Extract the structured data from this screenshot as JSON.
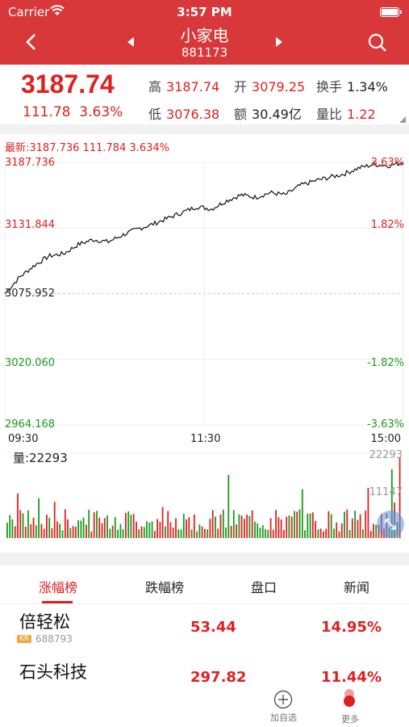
{
  "status": {
    "carrier": "Carrier",
    "time": "3:57 PM"
  },
  "nav": {
    "title": "小家电",
    "code": "881173"
  },
  "quote": {
    "price": "3187.74",
    "change": "111.78",
    "change_pct": "3.63%",
    "stats": [
      {
        "label": "高",
        "value": "3187.74",
        "color": "red"
      },
      {
        "label": "开",
        "value": "3079.25",
        "color": "red"
      },
      {
        "label": "换手",
        "value": "1.34%",
        "color": "black"
      },
      {
        "label": "低",
        "value": "3076.38",
        "color": "red"
      },
      {
        "label": "额",
        "value": "30.49亿",
        "color": "black"
      },
      {
        "label": "量比",
        "value": "1.22",
        "color": "red"
      }
    ]
  },
  "chart": {
    "latest": "最新:3187.736 111.784 3.634%",
    "y_labels_left": [
      "3187.736",
      "3131.844",
      "3075.952",
      "3020.060",
      "2964.168"
    ],
    "y_labels_right": [
      "3.63%",
      "1.82%",
      "",
      "-1.82%",
      "-3.63%"
    ],
    "x_labels": [
      "09:30",
      "11:30",
      "15:00"
    ],
    "volume_label": "量:22293",
    "volume_max": "22293",
    "volume_mid": "11147"
  },
  "chart_data": {
    "type": "line",
    "x_range": [
      "09:30",
      "15:00"
    ],
    "ylim": [
      2964.168,
      3187.736
    ],
    "series": [
      {
        "values": [
          3075.9,
          3090,
          3100,
          3108,
          3110,
          3118,
          3122,
          3120,
          3126,
          3131,
          3135,
          3140,
          3145,
          3150,
          3148,
          3155,
          3160,
          3158,
          3162,
          3160,
          3168,
          3172,
          3175,
          3178,
          3183,
          3186,
          3185,
          3187.7
        ]
      }
    ],
    "volume_max": 22293
  },
  "tabs": [
    "涨幅榜",
    "跌幅榜",
    "盘口",
    "新闻"
  ],
  "stocks": [
    {
      "name": "倍轻松",
      "badge": "KR",
      "code": "688793",
      "price": "53.44",
      "pct": "14.95%"
    },
    {
      "name": "石头科技",
      "badge": "",
      "code": "",
      "price": "297.82",
      "pct": "11.44%"
    }
  ],
  "bottom": {
    "add_label": "加自选",
    "more_label": "更多"
  },
  "colors": {
    "header": "#d9383a",
    "up": "#e02020",
    "down": "#1a9a1a"
  }
}
